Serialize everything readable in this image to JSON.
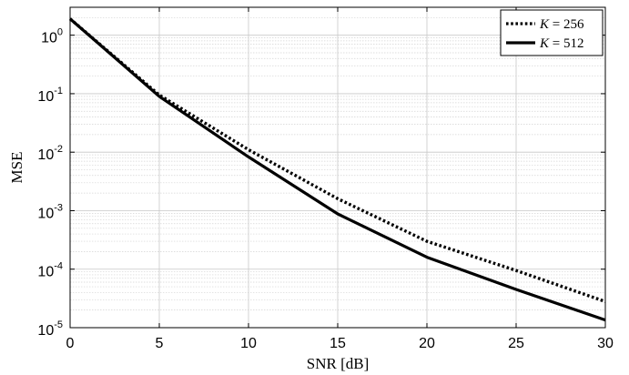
{
  "chart_data": {
    "type": "line",
    "xlabel": "SNR [dB]",
    "ylabel": "MSE",
    "xlim": [
      0,
      30
    ],
    "ylim": [
      1e-05,
      3
    ],
    "yscale": "log",
    "grid": true,
    "minor_grid": true,
    "legend_position": "top-right",
    "x_ticks": [
      "0",
      "5",
      "10",
      "15",
      "20",
      "25",
      "30"
    ],
    "y_ticks": [
      {
        "base": "10",
        "exp": "0"
      },
      {
        "base": "10",
        "exp": "-1"
      },
      {
        "base": "10",
        "exp": "-2"
      },
      {
        "base": "10",
        "exp": "-3"
      },
      {
        "base": "10",
        "exp": "-4"
      },
      {
        "base": "10",
        "exp": "-5"
      }
    ],
    "x": [
      0,
      5,
      10,
      15,
      20,
      25,
      30
    ],
    "series": [
      {
        "name": "K = 256",
        "legend_var": "K",
        "legend_eq": " = 256",
        "style": "dotted",
        "color": "#000000",
        "values": [
          1.9,
          0.095,
          0.011,
          0.0016,
          0.0003,
          9.5e-05,
          2.8e-05
        ]
      },
      {
        "name": "K = 512",
        "legend_var": "K",
        "legend_eq": " = 512",
        "style": "solid",
        "color": "#000000",
        "values": [
          1.9,
          0.09,
          0.0083,
          0.00088,
          0.00016,
          4.5e-05,
          1.35e-05
        ]
      }
    ]
  }
}
